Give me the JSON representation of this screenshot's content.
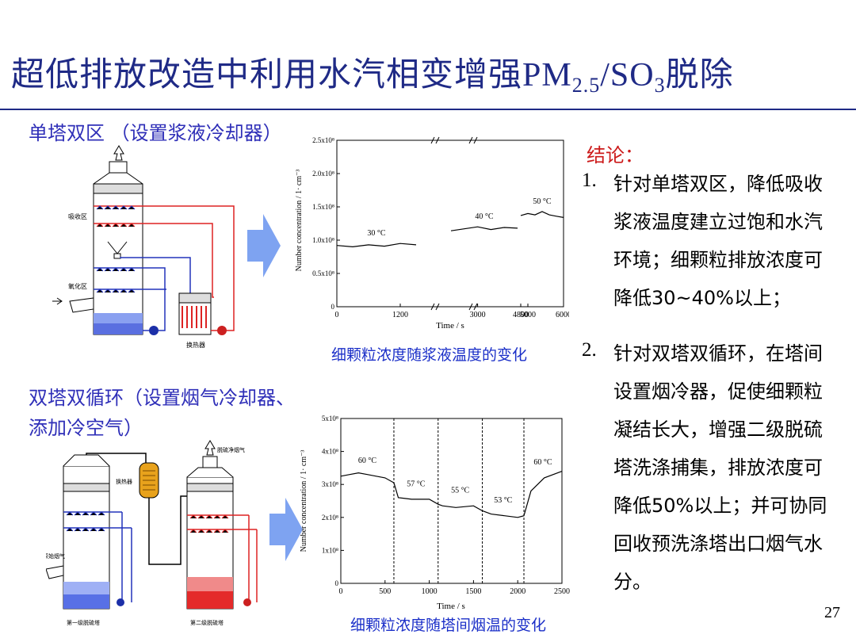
{
  "slide": {
    "title_cn": "超低排放改造中利用水汽相变增强",
    "title_pm": "PM",
    "title_pm_sub": "2.5",
    "title_sep": "/SO",
    "title_so_sub": "3",
    "title_end": "脱除",
    "page_number": "27",
    "accent_color": "#1f2a86"
  },
  "section1": {
    "heading": "单塔双区 （设置浆液冷却器）",
    "diagram": {
      "label_absorb": "吸收区",
      "label_oxid": "氧化区",
      "label_hx": "换热器"
    },
    "caption": "细颗粒浓度随浆液温度的变化"
  },
  "section2": {
    "heading_line1": "双塔双循环（设置烟气冷却器、",
    "heading_line2": "添加冷空气）",
    "diagram": {
      "label_raw": "原始烟气",
      "label_clean": "脱硫净烟气",
      "label_hx": "换热器",
      "label_tower1": "第一级脱硫塔",
      "label_tower2": "第二级脱硫塔"
    },
    "caption": "细颗粒浓度随塔间烟温的变化"
  },
  "conclusion": {
    "heading": "结论：",
    "items": [
      {
        "num": "1.",
        "lines": [
          "针对单塔双区，降低吸收",
          "浆液温度建立过饱和水汽",
          "环境；细颗粒排放浓度可",
          "降低30~40%以上；"
        ]
      },
      {
        "num": "2.",
        "lines": [
          "针对双塔双循环，在塔间",
          "设置烟冷器，促使细颗粒",
          "凝结长大，增强二级脱硫",
          "塔洗涤捕集，排放浓度可",
          "降低50%以上；并可协同",
          "回收预洗涤塔出口烟气水",
          "分。"
        ]
      }
    ]
  },
  "chart_data": [
    {
      "type": "line",
      "xlabel": "Time / s",
      "ylabel": "Number concentration / 1· cm⁻³",
      "x_ticks": [
        "0",
        "1200",
        "3000",
        "4800",
        "5000",
        "6000"
      ],
      "y_ticks": [
        "0",
        "0.5x10⁸",
        "1.0x10⁸",
        "1.5x10⁸",
        "2.0x10⁸",
        "2.5x10⁸"
      ],
      "ylim": [
        0,
        2.5
      ],
      "y_unit_scale": "x10⁸",
      "x_axis_breaks": true,
      "series": [
        {
          "label": "30 °C",
          "x": [
            0,
            300,
            600,
            900,
            1200,
            1500
          ],
          "y": [
            0.92,
            0.9,
            0.93,
            0.91,
            0.95,
            0.93
          ]
        },
        {
          "label": "40 °C",
          "x": [
            2400,
            2700,
            3000,
            3300,
            3600,
            3900
          ],
          "y": [
            1.14,
            1.17,
            1.2,
            1.16,
            1.19,
            1.18
          ]
        },
        {
          "label": "50 °C",
          "x": [
            4800,
            5000,
            5200,
            5400,
            5600,
            5800,
            6000
          ],
          "y": [
            1.37,
            1.4,
            1.38,
            1.43,
            1.38,
            1.36,
            1.34
          ]
        }
      ]
    },
    {
      "type": "line",
      "xlabel": "Time / s",
      "ylabel": "Number concentration / 1· cm⁻³",
      "x_ticks": [
        "0",
        "500",
        "1000",
        "1500",
        "2000",
        "2500"
      ],
      "y_ticks": [
        "0",
        "1x10⁸",
        "2x10⁸",
        "3x10⁸",
        "4x10⁸",
        "5x10⁸"
      ],
      "xlim": [
        0,
        2500
      ],
      "ylim": [
        0,
        5
      ],
      "y_unit_scale": "x10⁸",
      "phase_boundaries": [
        600,
        1100,
        1600,
        2070
      ],
      "annotations": [
        "60 °C",
        "57 °C",
        "55 °C",
        "53 °C",
        "60 °C"
      ],
      "series": [
        {
          "x": [
            0,
            100,
            200,
            300,
            400,
            500,
            600,
            650,
            800,
            1000,
            1100,
            1150,
            1300,
            1500,
            1600,
            1700,
            1850,
            2000,
            2070,
            2150,
            2300,
            2500
          ],
          "y": [
            3.25,
            3.3,
            3.35,
            3.3,
            3.25,
            3.2,
            3.05,
            2.6,
            2.55,
            2.55,
            2.4,
            2.35,
            2.3,
            2.35,
            2.2,
            2.1,
            2.05,
            2.0,
            2.05,
            2.8,
            3.2,
            3.4
          ]
        }
      ]
    }
  ]
}
